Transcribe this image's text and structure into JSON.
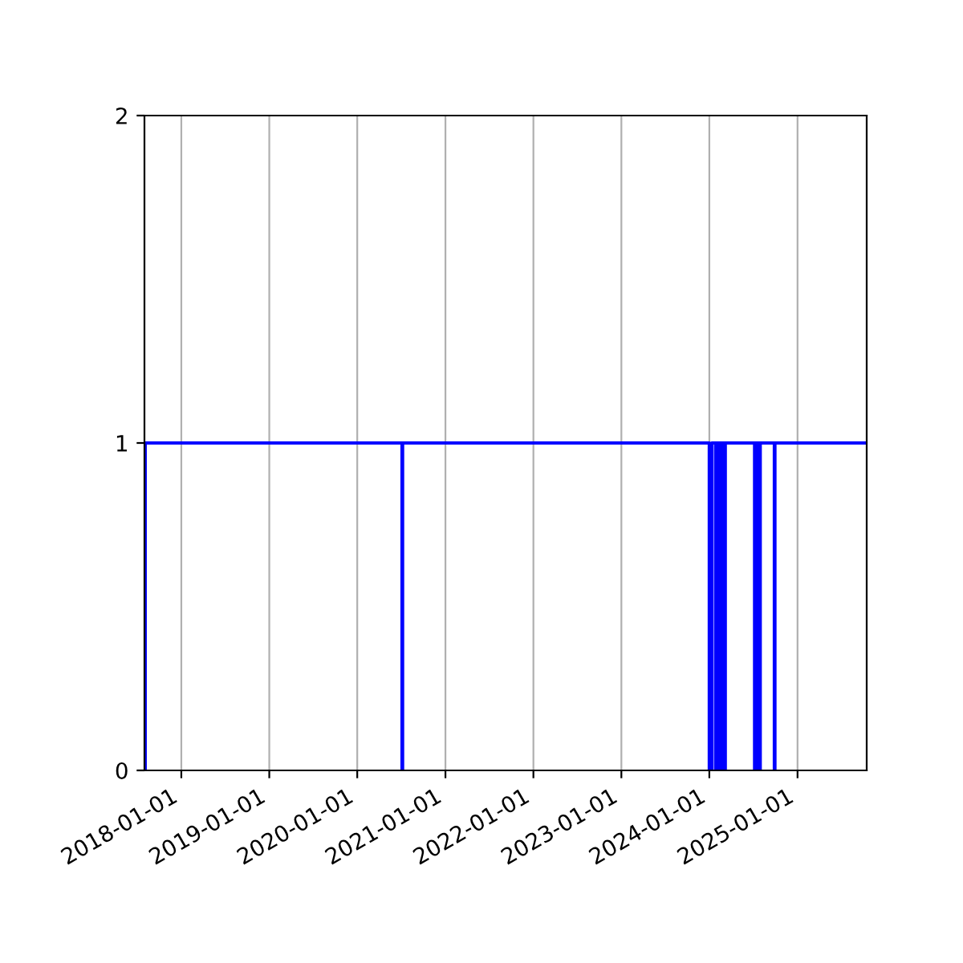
{
  "chart_data": {
    "type": "step",
    "xlim": [
      "2017-08-01",
      "2025-10-15"
    ],
    "ylim": [
      0,
      2
    ],
    "yticks": [
      0,
      1,
      2
    ],
    "xticks": [
      "2018-01-01",
      "2019-01-01",
      "2020-01-01",
      "2021-01-01",
      "2022-01-01",
      "2023-01-01",
      "2024-01-01",
      "2025-01-01"
    ],
    "grid": "x",
    "series": [
      {
        "color": "#0000ff",
        "x": [
          "2017-08-01",
          "2017-08-04",
          "2020-07-05",
          "2020-07-07",
          "2024-01-01",
          "2024-01-11",
          "2024-01-27",
          "2024-02-01",
          "2024-02-05",
          "2024-02-10",
          "2024-02-14",
          "2024-02-19",
          "2024-02-23",
          "2024-02-28",
          "2024-03-02",
          "2024-03-07",
          "2024-07-07",
          "2024-07-12",
          "2024-07-16",
          "2024-07-21",
          "2024-07-25",
          "2024-07-30",
          "2024-08-05",
          "2024-09-27",
          "2024-09-29",
          "2025-10-15"
        ],
        "values": [
          0,
          1,
          0,
          1,
          0,
          1,
          0,
          1,
          0,
          1,
          0,
          1,
          0,
          1,
          0,
          1,
          0,
          1,
          0,
          1,
          0,
          1,
          1,
          0,
          1,
          1
        ]
      }
    ]
  }
}
